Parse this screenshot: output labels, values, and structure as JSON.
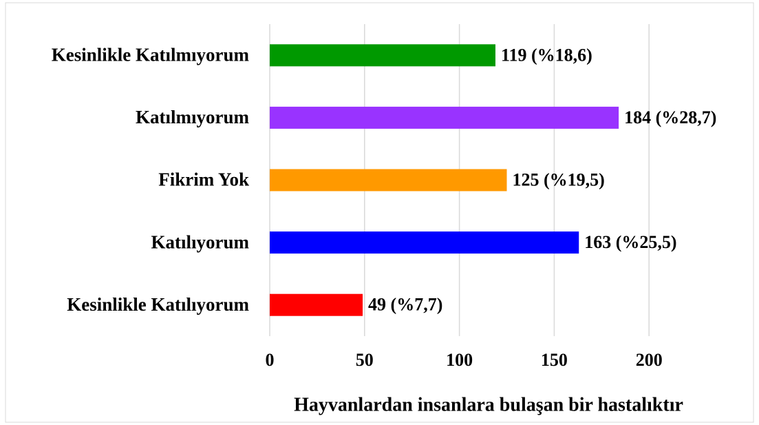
{
  "chart_data": {
    "type": "barh",
    "categories": [
      "Kesinlikle Katılmıyorum",
      "Katılmıyorum",
      "Fikrim Yok",
      "Katılıyorum",
      "Kesinlikle Katılıyorum"
    ],
    "values": [
      119,
      184,
      125,
      163,
      49
    ],
    "value_labels": [
      "119 (%18,6)",
      "184 (%28,7)",
      "125 (%19,5)",
      "163 (%25,5)",
      "49 (%7,7)"
    ],
    "colors": [
      "#009900",
      "#9933ff",
      "#ff9900",
      "#0000ff",
      "#ff0000"
    ],
    "xlabel": "Hayvanlardan insanlara bulaşan bir hastalıktır",
    "xlim": [
      0,
      250
    ],
    "xticks": [
      0,
      50,
      100,
      150,
      200
    ],
    "grid": true
  }
}
